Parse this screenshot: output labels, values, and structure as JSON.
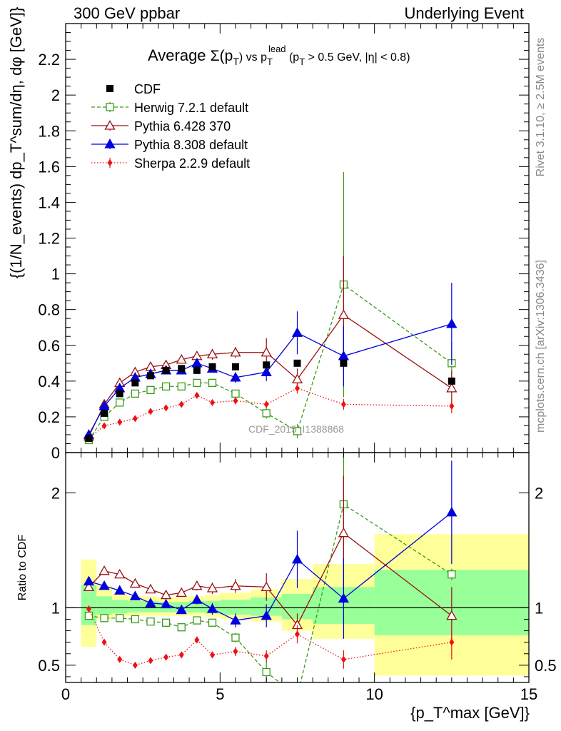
{
  "header": {
    "left": "300 GeV ppbar",
    "right": "Underlying Event",
    "side_top": "Rivet 3.1.10, ≥ 2.5M events",
    "side_bottom": "mcplots.cern.ch [arXiv:1306.3436]"
  },
  "chart_data": [
    {
      "type": "line",
      "title": "Average Σ(pT) vs pT^lead (pT > 0.5 GeV, |η| < 0.8)",
      "title_parts": [
        "Average ",
        "Σ(p",
        "T",
        ")",
        " vs p",
        "T",
        "lead",
        " (p",
        "T",
        " > 0.5 GeV, |η| < 0.8)"
      ],
      "ylabel": "{(1/N_events) dp_T^sum/dη, dφ [GeV]}",
      "xlim": [
        0,
        15
      ],
      "ylim": [
        0,
        2.4
      ],
      "yticks": [
        0,
        0.2,
        0.4,
        0.6,
        0.8,
        1,
        1.2,
        1.4,
        1.6,
        1.8,
        2,
        2.2
      ],
      "ytick_labels": [
        "0",
        "0.2",
        "0.4",
        "0.6",
        "0.8",
        "1",
        "1.2",
        "1.4",
        "1.6",
        "1.8",
        "2",
        "2.2"
      ],
      "legend_position": "top-left",
      "watermark": "CDF_2015_I1388868",
      "series": [
        {
          "name": "CDF",
          "color": "#000000",
          "marker": "square-filled",
          "line": "none",
          "x": [
            0.75,
            1.25,
            1.75,
            2.25,
            2.75,
            3.25,
            3.75,
            4.25,
            4.75,
            5.5,
            6.5,
            7.5,
            9,
            12.5
          ],
          "y": [
            0.08,
            0.22,
            0.33,
            0.39,
            0.43,
            0.46,
            0.47,
            0.46,
            0.48,
            0.48,
            0.49,
            0.5,
            0.5,
            0.4
          ],
          "err": [
            0.01,
            0.01,
            0.01,
            0.01,
            0.01,
            0.01,
            0.01,
            0.01,
            0.01,
            0.01,
            0.01,
            0.01,
            0.02,
            0.02
          ]
        },
        {
          "name": "Herwig 7.2.1 default",
          "color": "#3a9a1a",
          "marker": "square-open",
          "line": "dashed",
          "x": [
            0.75,
            1.25,
            1.75,
            2.25,
            2.75,
            3.25,
            3.75,
            4.25,
            4.75,
            5.5,
            6.5,
            7.5,
            9,
            12.5
          ],
          "y": [
            0.07,
            0.2,
            0.28,
            0.33,
            0.35,
            0.37,
            0.37,
            0.39,
            0.39,
            0.33,
            0.22,
            0.12,
            0.94,
            0.5
          ],
          "err": [
            0.01,
            0.01,
            0.02,
            0.01,
            0.01,
            0.01,
            0.01,
            0.02,
            0.02,
            0.02,
            0.03,
            0.04,
            0.63,
            0.12
          ]
        },
        {
          "name": "Pythia 6.428 370",
          "color": "#9a1010",
          "marker": "triangle-open",
          "line": "solid",
          "x": [
            0.75,
            1.25,
            1.75,
            2.25,
            2.75,
            3.25,
            3.75,
            4.25,
            4.75,
            5.5,
            6.5,
            7.5,
            9,
            12.5
          ],
          "y": [
            0.09,
            0.27,
            0.39,
            0.45,
            0.48,
            0.49,
            0.52,
            0.54,
            0.55,
            0.56,
            0.56,
            0.41,
            0.77,
            0.36
          ],
          "err": [
            0.01,
            0.01,
            0.01,
            0.01,
            0.01,
            0.01,
            0.01,
            0.02,
            0.03,
            0.03,
            0.08,
            0.06,
            0.33,
            0.1
          ]
        },
        {
          "name": "Pythia 8.308 default",
          "color": "#0000dd",
          "marker": "triangle-filled",
          "line": "solid",
          "x": [
            0.75,
            1.25,
            1.75,
            2.25,
            2.75,
            3.25,
            3.75,
            4.25,
            4.75,
            5.5,
            6.5,
            7.5,
            9,
            12.5
          ],
          "y": [
            0.1,
            0.26,
            0.36,
            0.42,
            0.44,
            0.46,
            0.46,
            0.5,
            0.47,
            0.42,
            0.45,
            0.67,
            0.54,
            0.72
          ],
          "err": [
            0.01,
            0.01,
            0.01,
            0.01,
            0.01,
            0.01,
            0.01,
            0.02,
            0.02,
            0.03,
            0.05,
            0.12,
            0.17,
            0.23
          ]
        },
        {
          "name": "Sherpa 2.2.9 default",
          "color": "#ee1111",
          "marker": "diamond-filled",
          "line": "dotted",
          "x": [
            0.75,
            1.25,
            1.75,
            2.25,
            2.75,
            3.25,
            3.75,
            4.25,
            4.75,
            5.5,
            6.5,
            7.5,
            9,
            12.5
          ],
          "y": [
            0.08,
            0.15,
            0.17,
            0.19,
            0.23,
            0.25,
            0.27,
            0.32,
            0.28,
            0.29,
            0.27,
            0.36,
            0.27,
            0.26
          ],
          "err": [
            0.005,
            0.01,
            0.01,
            0.01,
            0.01,
            0.01,
            0.01,
            0.01,
            0.01,
            0.02,
            0.02,
            0.03,
            0.03,
            0.04
          ]
        }
      ]
    },
    {
      "type": "line",
      "ylabel": "Ratio to CDF",
      "xlabel": "{p_T^max [GeV]}",
      "xlim": [
        0,
        15
      ],
      "ylim": [
        0.35,
        2.35
      ],
      "xticks": [
        0,
        5,
        10,
        15
      ],
      "xtick_labels": [
        "0",
        "5",
        "10",
        "15"
      ],
      "yticks": [
        0.5,
        1,
        2
      ],
      "ytick_labels": [
        "0.5",
        "1",
        "2"
      ],
      "reference_line": 1,
      "bands": [
        {
          "x0": 0.5,
          "x1": 1,
          "yellow": [
            0.66,
            1.42
          ],
          "green": [
            0.85,
            1.2
          ]
        },
        {
          "x0": 1,
          "x1": 1.5,
          "yellow": [
            0.9,
            1.2
          ],
          "green": [
            0.94,
            1.1
          ]
        },
        {
          "x0": 1.5,
          "x1": 2,
          "yellow": [
            0.92,
            1.12
          ],
          "green": [
            0.95,
            1.07
          ]
        },
        {
          "x0": 2,
          "x1": 2.5,
          "yellow": [
            0.93,
            1.1
          ],
          "green": [
            0.96,
            1.06
          ]
        },
        {
          "x0": 2.5,
          "x1": 3,
          "yellow": [
            0.93,
            1.1
          ],
          "green": [
            0.96,
            1.06
          ]
        },
        {
          "x0": 3,
          "x1": 3.5,
          "yellow": [
            0.93,
            1.09
          ],
          "green": [
            0.96,
            1.05
          ]
        },
        {
          "x0": 3.5,
          "x1": 4,
          "yellow": [
            0.93,
            1.09
          ],
          "green": [
            0.96,
            1.05
          ]
        },
        {
          "x0": 4,
          "x1": 4.5,
          "yellow": [
            0.93,
            1.1
          ],
          "green": [
            0.96,
            1.06
          ]
        },
        {
          "x0": 4.5,
          "x1": 5,
          "yellow": [
            0.92,
            1.11
          ],
          "green": [
            0.95,
            1.06
          ]
        },
        {
          "x0": 5,
          "x1": 6,
          "yellow": [
            0.9,
            1.13
          ],
          "green": [
            0.94,
            1.07
          ]
        },
        {
          "x0": 6,
          "x1": 7,
          "yellow": [
            0.88,
            1.16
          ],
          "green": [
            0.93,
            1.09
          ]
        },
        {
          "x0": 7,
          "x1": 8,
          "yellow": [
            0.8,
            1.25
          ],
          "green": [
            0.9,
            1.12
          ]
        },
        {
          "x0": 8,
          "x1": 10,
          "yellow": [
            0.73,
            1.38
          ],
          "green": [
            0.86,
            1.18
          ]
        },
        {
          "x0": 10,
          "x1": 15,
          "yellow": [
            0.41,
            1.64
          ],
          "green": [
            0.76,
            1.33
          ]
        }
      ],
      "series": [
        {
          "name": "Herwig 7.2.1 default",
          "color": "#3a9a1a",
          "marker": "square-open",
          "line": "dashed",
          "x": [
            0.75,
            1.25,
            1.75,
            2.25,
            2.75,
            3.25,
            3.75,
            4.25,
            4.75,
            5.5,
            6.5,
            7.5,
            9,
            12.5
          ],
          "y": [
            0.93,
            0.91,
            0.91,
            0.9,
            0.88,
            0.87,
            0.83,
            0.89,
            0.87,
            0.74,
            0.44,
            0.23,
            1.9,
            1.29
          ],
          "err": [
            0.01,
            0.01,
            0.02,
            0.01,
            0.01,
            0.01,
            0.02,
            0.03,
            0.03,
            0.04,
            0.1,
            0.1,
            1.0,
            0.05
          ]
        },
        {
          "name": "Pythia 6.428 370",
          "color": "#9a1010",
          "marker": "triangle-open",
          "line": "solid",
          "x": [
            0.75,
            1.25,
            1.75,
            2.25,
            2.75,
            3.25,
            3.75,
            4.25,
            4.75,
            5.5,
            6.5,
            7.5,
            9,
            12.5
          ],
          "y": [
            1.18,
            1.32,
            1.29,
            1.21,
            1.16,
            1.11,
            1.13,
            1.19,
            1.17,
            1.19,
            1.18,
            0.85,
            1.65,
            0.93
          ],
          "err": [
            0.02,
            0.02,
            0.02,
            0.02,
            0.02,
            0.02,
            0.02,
            0.04,
            0.05,
            0.06,
            0.12,
            0.1,
            0.5,
            0.25
          ]
        },
        {
          "name": "Pythia 8.308 default",
          "color": "#0000dd",
          "marker": "triangle-filled",
          "line": "solid",
          "x": [
            0.75,
            1.25,
            1.75,
            2.25,
            2.75,
            3.25,
            3.75,
            4.25,
            4.75,
            5.5,
            6.5,
            7.5,
            9,
            12.5
          ],
          "y": [
            1.23,
            1.19,
            1.15,
            1.1,
            1.04,
            1.03,
            0.98,
            1.07,
            0.99,
            0.89,
            0.93,
            1.42,
            1.08,
            1.83
          ],
          "err": [
            0.02,
            0.02,
            0.02,
            0.02,
            0.02,
            0.02,
            0.02,
            0.04,
            0.05,
            0.06,
            0.1,
            0.25,
            0.35,
            0.45
          ]
        },
        {
          "name": "Sherpa 2.2.9 default",
          "color": "#ee1111",
          "marker": "diamond-filled",
          "line": "dotted",
          "x": [
            0.75,
            1.25,
            1.75,
            2.25,
            2.75,
            3.25,
            3.75,
            4.25,
            4.75,
            5.5,
            6.5,
            7.5,
            9,
            12.5
          ],
          "y": [
            0.99,
            0.7,
            0.55,
            0.5,
            0.54,
            0.57,
            0.59,
            0.72,
            0.59,
            0.62,
            0.58,
            0.77,
            0.55,
            0.7
          ],
          "err": [
            0.01,
            0.02,
            0.02,
            0.02,
            0.02,
            0.02,
            0.02,
            0.03,
            0.03,
            0.04,
            0.05,
            0.08,
            0.08,
            0.15
          ]
        }
      ]
    }
  ]
}
